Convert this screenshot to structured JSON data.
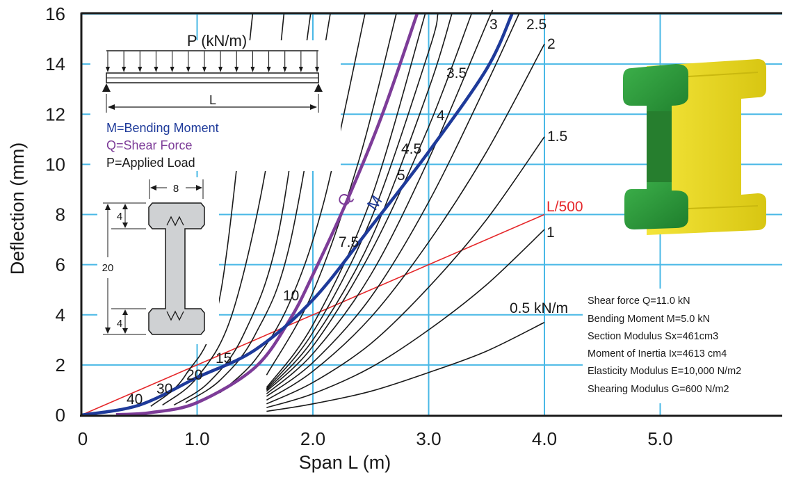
{
  "chart_data": {
    "type": "line",
    "xlabel": "Span L (m)",
    "ylabel": "Deflection (mm)",
    "xlim": [
      0,
      6.0
    ],
    "ylim": [
      0,
      16
    ],
    "x_ticks": [
      {
        "value": 0,
        "label": "0"
      },
      {
        "value": 1,
        "label": "1.0"
      },
      {
        "value": 2,
        "label": "2.0"
      },
      {
        "value": 3,
        "label": "3.0"
      },
      {
        "value": 4,
        "label": "4.0"
      },
      {
        "value": 5,
        "label": "5.0"
      }
    ],
    "y_ticks": [
      {
        "value": 0,
        "label": "0"
      },
      {
        "value": 2,
        "label": "2"
      },
      {
        "value": 4,
        "label": "4"
      },
      {
        "value": 6,
        "label": "6"
      },
      {
        "value": 8,
        "label": "8"
      },
      {
        "value": 10,
        "label": "10"
      },
      {
        "value": 12,
        "label": "12"
      },
      {
        "value": 14,
        "label": "14"
      },
      {
        "value": 16,
        "label": "16"
      }
    ],
    "grid": true,
    "grid_color": "#49b8e6",
    "load_curves": [
      {
        "label": "0.5 kN/m",
        "points": [
          [
            1.6,
            0.15
          ],
          [
            2.0,
            0.45
          ],
          [
            2.5,
            0.95
          ],
          [
            3.0,
            1.7
          ],
          [
            3.5,
            2.55
          ],
          [
            4.0,
            3.7
          ]
        ]
      },
      {
        "label": "1",
        "points": [
          [
            1.6,
            0.3
          ],
          [
            2.0,
            0.85
          ],
          [
            2.5,
            1.9
          ],
          [
            3.0,
            3.4
          ],
          [
            3.5,
            5.2
          ],
          [
            4.0,
            7.4
          ]
        ]
      },
      {
        "label": "1.5",
        "points": [
          [
            1.6,
            0.45
          ],
          [
            2.0,
            1.3
          ],
          [
            2.5,
            2.85
          ],
          [
            3.0,
            5.1
          ],
          [
            3.5,
            7.8
          ],
          [
            4.0,
            11.1
          ]
        ]
      },
      {
        "label": "2",
        "points": [
          [
            1.6,
            0.6
          ],
          [
            2.0,
            1.75
          ],
          [
            2.5,
            3.9
          ],
          [
            3.0,
            6.9
          ],
          [
            3.5,
            10.5
          ],
          [
            4.0,
            14.8
          ]
        ]
      },
      {
        "label": "2.5",
        "points": [
          [
            1.6,
            0.75
          ],
          [
            2.0,
            2.1
          ],
          [
            2.5,
            4.7
          ],
          [
            3.0,
            8.5
          ],
          [
            3.5,
            13.2
          ],
          [
            3.78,
            16.0
          ]
        ]
      },
      {
        "label": "3",
        "points": [
          [
            1.6,
            0.85
          ],
          [
            2.0,
            2.45
          ],
          [
            2.5,
            5.6
          ],
          [
            3.0,
            10.2
          ],
          [
            3.5,
            15.6
          ],
          [
            3.54,
            16.0
          ]
        ]
      },
      {
        "label": "3.5",
        "points": [
          [
            1.6,
            0.95
          ],
          [
            2.0,
            2.75
          ],
          [
            2.5,
            6.5
          ],
          [
            3.0,
            11.5
          ],
          [
            3.37,
            16.0
          ]
        ]
      },
      {
        "label": "4",
        "points": [
          [
            1.6,
            1.0
          ],
          [
            2.0,
            3.0
          ],
          [
            2.5,
            7.0
          ],
          [
            3.0,
            13.0
          ],
          [
            3.2,
            16.0
          ]
        ]
      },
      {
        "label": "4.5",
        "points": [
          [
            1.6,
            1.05
          ],
          [
            2.0,
            3.3
          ],
          [
            2.5,
            7.8
          ],
          [
            3.0,
            14.5
          ],
          [
            3.08,
            16.0
          ]
        ]
      },
      {
        "label": "5",
        "points": [
          [
            1.6,
            1.1
          ],
          [
            2.0,
            3.6
          ],
          [
            2.5,
            8.6
          ],
          [
            2.97,
            16.0
          ]
        ]
      },
      {
        "label": "7.5",
        "points": [
          [
            1.6,
            1.6
          ],
          [
            2.0,
            4.9
          ],
          [
            2.4,
            10.2
          ],
          [
            2.72,
            16.0
          ]
        ]
      },
      {
        "label": "10",
        "points": [
          [
            1.2,
            0.9
          ],
          [
            1.5,
            2.2
          ],
          [
            1.8,
            4.5
          ],
          [
            2.1,
            8.6
          ],
          [
            2.45,
            16.0
          ]
        ]
      },
      {
        "label": "15",
        "points": [
          [
            0.9,
            0.5
          ],
          [
            1.2,
            1.4
          ],
          [
            1.5,
            3.2
          ],
          [
            1.8,
            6.8
          ],
          [
            2.15,
            16.0
          ]
        ]
      },
      {
        "label": "20",
        "points": [
          [
            0.8,
            0.4
          ],
          [
            1.1,
            1.3
          ],
          [
            1.4,
            3.2
          ],
          [
            1.7,
            7.2
          ],
          [
            1.98,
            16.0
          ]
        ]
      },
      {
        "label": "30",
        "points": [
          [
            0.7,
            0.4
          ],
          [
            1.0,
            1.5
          ],
          [
            1.3,
            4.0
          ],
          [
            1.6,
            10.0
          ],
          [
            1.75,
            16.0
          ]
        ]
      },
      {
        "label": "40",
        "points": [
          [
            0.6,
            0.35
          ],
          [
            0.9,
            1.6
          ],
          [
            1.2,
            4.8
          ],
          [
            1.48,
            16.0
          ]
        ]
      }
    ],
    "shear_curve": {
      "label": "Q",
      "color": "#7d3c98",
      "points": [
        [
          0.3,
          0.02
        ],
        [
          0.6,
          0.1
        ],
        [
          1.0,
          0.5
        ],
        [
          1.5,
          1.9
        ],
        [
          1.8,
          3.8
        ],
        [
          2.0,
          5.6
        ],
        [
          2.3,
          8.6
        ],
        [
          2.6,
          12.0
        ],
        [
          2.9,
          16.0
        ]
      ]
    },
    "moment_curve": {
      "label": "M",
      "color": "#1e3a9a",
      "points": [
        [
          0.0,
          0.0
        ],
        [
          0.5,
          0.4
        ],
        [
          1.0,
          1.5
        ],
        [
          1.5,
          2.6
        ],
        [
          2.0,
          4.6
        ],
        [
          2.5,
          7.5
        ],
        [
          3.0,
          10.5
        ],
        [
          3.5,
          13.8
        ],
        [
          3.72,
          16.0
        ]
      ]
    },
    "limit_line": {
      "label": "L/500",
      "color": "#e5272a",
      "points": [
        [
          0,
          0
        ],
        [
          4.0,
          8.0
        ]
      ]
    }
  },
  "legend": {
    "load_label": "P (kN/m)",
    "span_label": "L",
    "items": [
      {
        "text": "M=Bending Moment",
        "color": "#1e3a9a"
      },
      {
        "text": "Q=Shear Force",
        "color": "#7d3c98"
      },
      {
        "text": "P=Applied Load",
        "color": "#1a1a1a"
      }
    ]
  },
  "section_dims": {
    "width": "8",
    "flange_top": "4",
    "height": "20",
    "flange_bottom": "4"
  },
  "properties": [
    "Shear force Q=11.0 kN",
    "Bending Moment M=5.0 kN",
    "Section Modulus Sx=461cm3",
    "Moment of Inertia Ix=4613 cm4",
    "Elasticity Modulus E=10,000 N/m2",
    "Shearing Modulus G=600 N/m2"
  ],
  "colors": {
    "beam_yellow": "#ecdc1c",
    "beam_green": "#2c9a38",
    "grid": "#49b8e6",
    "axis": "#1a1a1a"
  }
}
